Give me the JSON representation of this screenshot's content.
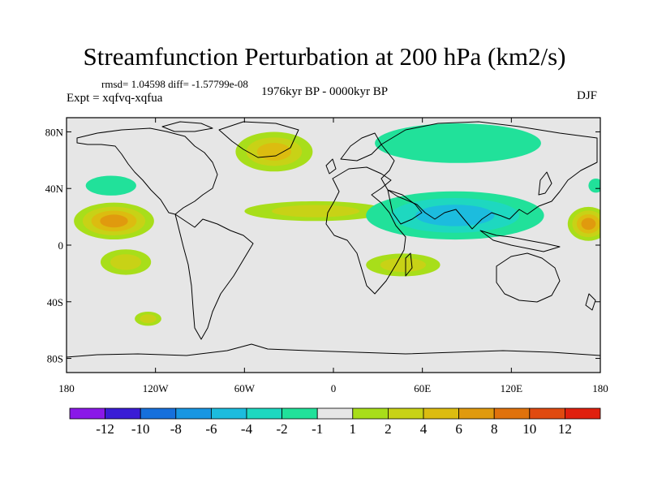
{
  "title": "Streamfunction Perturbation at 200 hPa (km2/s)",
  "stats_text": "rmsd= 1.04598 diff= -1.57799e-08",
  "experiment_text": "Expt = xqfvq-xqfua",
  "period_text": "1976kyr BP - 0000kyr BP",
  "season_text": "DJF",
  "chart_data": {
    "type": "heatmap",
    "title": "Streamfunction Perturbation at 200 hPa (km2/s)",
    "projection": "cylindrical equidistant",
    "units": "km2/s",
    "lon_range": [
      -180,
      180
    ],
    "lat_range": [
      -90,
      90
    ],
    "x_ticks": [
      {
        "lon": -180,
        "label": "180"
      },
      {
        "lon": -120,
        "label": "120W"
      },
      {
        "lon": -60,
        "label": "60W"
      },
      {
        "lon": 0,
        "label": "0"
      },
      {
        "lon": 60,
        "label": "60E"
      },
      {
        "lon": 120,
        "label": "120E"
      },
      {
        "lon": 180,
        "label": "180"
      }
    ],
    "y_ticks": [
      {
        "lat": 80,
        "label": "80N"
      },
      {
        "lat": 40,
        "label": "40N"
      },
      {
        "lat": 0,
        "label": "0"
      },
      {
        "lat": -40,
        "label": "40S"
      },
      {
        "lat": -80,
        "label": "80S"
      }
    ],
    "colorbar": {
      "colors": [
        "#8a18e8",
        "#3a1cd6",
        "#1670dc",
        "#1896e2",
        "#1cbcde",
        "#1ed8c0",
        "#21e19a",
        "#e6e6e6",
        "#a8de1a",
        "#c8d216",
        "#dcbc10",
        "#e09a0e",
        "#e0720c",
        "#e04a10",
        "#e0200e"
      ],
      "labels": [
        "-12",
        "-10",
        "-8",
        "-6",
        "-4",
        "-2",
        "-1",
        "1",
        "2",
        "4",
        "6",
        "8",
        "10",
        "12"
      ]
    },
    "anomalies": [
      {
        "name": "north-atlantic-greenland-high",
        "lon": -40,
        "lat": 66,
        "rlon": 26,
        "rlat": 14,
        "value": 4
      },
      {
        "name": "north-atlantic-low-west",
        "lon": -150,
        "lat": 42,
        "rlon": 17,
        "rlat": 7,
        "value": -1
      },
      {
        "name": "north-pacific-high",
        "lon": -148,
        "lat": 17,
        "rlon": 27,
        "rlat": 13,
        "value": 6
      },
      {
        "name": "equatorial-atlantic-high",
        "lon": -12,
        "lat": 24,
        "rlon": 48,
        "rlat": 7,
        "value": 2
      },
      {
        "name": "south-pacific-high",
        "lon": -140,
        "lat": -12,
        "rlon": 17,
        "rlat": 9,
        "value": 2
      },
      {
        "name": "southeast-pacific-high",
        "lon": -125,
        "lat": -52,
        "rlon": 9,
        "rlat": 5,
        "value": 2
      },
      {
        "name": "siberian-low",
        "lon": 84,
        "lat": 72,
        "rlon": 56,
        "rlat": 14,
        "value": -1
      },
      {
        "name": "south-asian-low",
        "lon": 82,
        "lat": 21,
        "rlon": 60,
        "rlat": 17,
        "value": -4
      },
      {
        "name": "southern-africa-high",
        "lon": 47,
        "lat": -14,
        "rlon": 25,
        "rlat": 8,
        "value": 2
      },
      {
        "name": "western-pacific-high",
        "lon": 172,
        "lat": 15,
        "rlon": 14,
        "rlat": 12,
        "value": 6
      },
      {
        "name": "northeast-asia-low",
        "lon": 177,
        "lat": 42,
        "rlon": 5,
        "rlat": 5,
        "value": -1
      }
    ]
  }
}
